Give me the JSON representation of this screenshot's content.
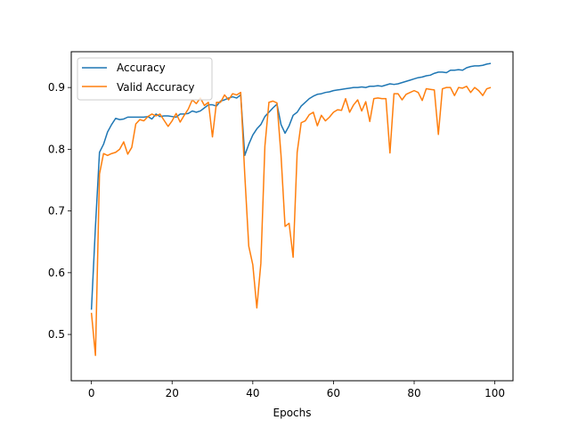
{
  "chart_data": {
    "type": "line",
    "title": "",
    "xlabel": "Epochs",
    "ylabel": "",
    "xlim": [
      -5,
      104.5
    ],
    "ylim": [
      0.425,
      0.958
    ],
    "xticks": [
      0,
      20,
      40,
      60,
      80,
      100
    ],
    "yticks": [
      0.5,
      0.6,
      0.7,
      0.8,
      0.9
    ],
    "grid": false,
    "legend": "top-left",
    "series": [
      {
        "name": "Accuracy",
        "color": "#1f77b4",
        "values": [
          0.54,
          0.675,
          0.795,
          0.808,
          0.828,
          0.84,
          0.85,
          0.848,
          0.849,
          0.852,
          0.852,
          0.852,
          0.852,
          0.852,
          0.853,
          0.849,
          0.857,
          0.853,
          0.854,
          0.854,
          0.853,
          0.852,
          0.857,
          0.857,
          0.858,
          0.862,
          0.86,
          0.862,
          0.867,
          0.872,
          0.872,
          0.87,
          0.878,
          0.88,
          0.883,
          0.885,
          0.883,
          0.888,
          0.79,
          0.808,
          0.823,
          0.833,
          0.84,
          0.853,
          0.86,
          0.867,
          0.873,
          0.84,
          0.826,
          0.838,
          0.855,
          0.86,
          0.87,
          0.876,
          0.882,
          0.886,
          0.889,
          0.89,
          0.892,
          0.893,
          0.895,
          0.896,
          0.897,
          0.898,
          0.899,
          0.9,
          0.9,
          0.901,
          0.9,
          0.902,
          0.902,
          0.903,
          0.902,
          0.904,
          0.906,
          0.905,
          0.906,
          0.908,
          0.91,
          0.912,
          0.914,
          0.916,
          0.917,
          0.919,
          0.92,
          0.923,
          0.925,
          0.925,
          0.924,
          0.928,
          0.928,
          0.929,
          0.928,
          0.932,
          0.934,
          0.935,
          0.935,
          0.936,
          0.938,
          0.939
        ]
      },
      {
        "name": "Valid Accuracy",
        "color": "#ff7f0e",
        "values": [
          0.535,
          0.466,
          0.76,
          0.793,
          0.79,
          0.793,
          0.795,
          0.8,
          0.812,
          0.792,
          0.803,
          0.841,
          0.848,
          0.846,
          0.853,
          0.857,
          0.854,
          0.857,
          0.847,
          0.837,
          0.846,
          0.858,
          0.844,
          0.855,
          0.865,
          0.88,
          0.874,
          0.883,
          0.871,
          0.876,
          0.82,
          0.876,
          0.876,
          0.888,
          0.88,
          0.89,
          0.888,
          0.892,
          0.76,
          0.643,
          0.613,
          0.543,
          0.615,
          0.805,
          0.876,
          0.878,
          0.875,
          0.79,
          0.675,
          0.68,
          0.625,
          0.795,
          0.843,
          0.846,
          0.856,
          0.86,
          0.838,
          0.855,
          0.846,
          0.852,
          0.86,
          0.864,
          0.863,
          0.882,
          0.86,
          0.872,
          0.88,
          0.862,
          0.877,
          0.845,
          0.882,
          0.883,
          0.882,
          0.882,
          0.794,
          0.89,
          0.89,
          0.88,
          0.889,
          0.892,
          0.895,
          0.892,
          0.879,
          0.898,
          0.897,
          0.896,
          0.824,
          0.898,
          0.9,
          0.9,
          0.887,
          0.9,
          0.899,
          0.902,
          0.892,
          0.9,
          0.895,
          0.887,
          0.898,
          0.9
        ]
      }
    ]
  }
}
